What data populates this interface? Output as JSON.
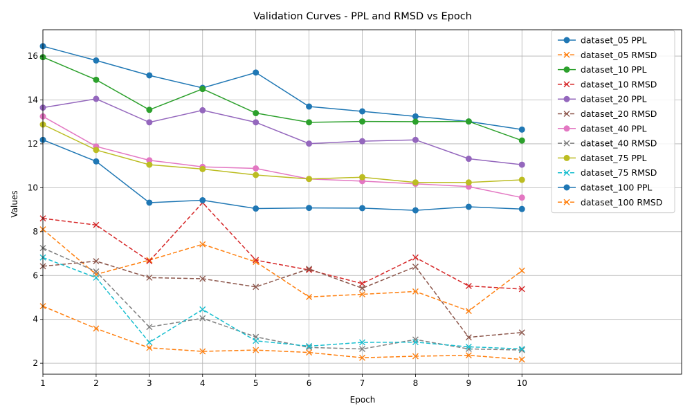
{
  "chart_data": {
    "type": "line",
    "title": "Validation Curves - PPL and RMSD vs Epoch",
    "xlabel": "Epoch",
    "ylabel": "Values",
    "xlim": [
      1,
      13
    ],
    "ylim": [
      1.5,
      17.2
    ],
    "x": [
      1,
      2,
      3,
      4,
      5,
      6,
      7,
      8,
      9,
      10
    ],
    "xticks": [
      "1",
      "2",
      "3",
      "4",
      "5",
      "6",
      "7",
      "8",
      "9",
      "10"
    ],
    "yticks": [
      "2",
      "4",
      "6",
      "8",
      "10",
      "12",
      "14",
      "16"
    ],
    "grid": true,
    "legend_position": "top-right",
    "series": [
      {
        "name": "dataset_05 PPL",
        "color": "#1f77b4",
        "style": "solid",
        "marker": "circle",
        "values": [
          16.45,
          15.8,
          15.12,
          14.55,
          15.25,
          13.7,
          13.48,
          13.25,
          13.02,
          12.65
        ]
      },
      {
        "name": "dataset_05 RMSD",
        "color": "#ff7f0e",
        "style": "dashed",
        "marker": "x",
        "values": [
          8.1,
          6.05,
          6.7,
          7.42,
          6.62,
          5.02,
          5.14,
          5.27,
          4.38,
          6.22
        ]
      },
      {
        "name": "dataset_10 PPL",
        "color": "#2ca02c",
        "style": "solid",
        "marker": "circle",
        "values": [
          15.95,
          14.92,
          13.55,
          14.5,
          13.4,
          12.98,
          13.02,
          13.01,
          13.02,
          12.15
        ]
      },
      {
        "name": "dataset_10 RMSD",
        "color": "#d62728",
        "style": "dashed",
        "marker": "x",
        "values": [
          8.6,
          8.3,
          6.65,
          9.32,
          6.7,
          6.25,
          5.63,
          6.82,
          5.52,
          5.38
        ]
      },
      {
        "name": "dataset_20 PPL",
        "color": "#9467bd",
        "style": "solid",
        "marker": "circle",
        "values": [
          13.65,
          14.05,
          12.98,
          13.53,
          12.98,
          12.01,
          12.12,
          12.18,
          11.32,
          11.05
        ]
      },
      {
        "name": "dataset_20 RMSD",
        "color": "#8c564b",
        "style": "dashed",
        "marker": "x",
        "values": [
          6.42,
          6.65,
          5.9,
          5.85,
          5.48,
          6.3,
          5.42,
          6.4,
          3.18,
          3.4
        ]
      },
      {
        "name": "dataset_40 PPL",
        "color": "#e377c2",
        "style": "solid",
        "marker": "circle",
        "values": [
          13.25,
          11.88,
          11.25,
          10.95,
          10.88,
          10.4,
          10.3,
          10.18,
          10.05,
          9.55
        ]
      },
      {
        "name": "dataset_40 RMSD",
        "color": "#7f7f7f",
        "style": "dashed",
        "marker": "x",
        "values": [
          7.25,
          6.18,
          3.65,
          4.05,
          3.2,
          2.72,
          2.65,
          3.08,
          2.65,
          2.6
        ]
      },
      {
        "name": "dataset_75 PPL",
        "color": "#bcbd22",
        "style": "solid",
        "marker": "circle",
        "values": [
          12.88,
          11.72,
          11.05,
          10.85,
          10.58,
          10.4,
          10.48,
          10.24,
          10.24,
          10.36
        ]
      },
      {
        "name": "dataset_75 RMSD",
        "color": "#17becf",
        "style": "dashed",
        "marker": "x",
        "values": [
          6.82,
          5.9,
          2.95,
          4.45,
          3.02,
          2.78,
          2.95,
          2.96,
          2.75,
          2.65
        ]
      },
      {
        "name": "dataset_100 PPL",
        "color": "#1f77b4",
        "style": "solid",
        "marker": "circle",
        "values": [
          12.18,
          11.2,
          9.32,
          9.43,
          9.05,
          9.08,
          9.07,
          8.97,
          9.13,
          9.03
        ]
      },
      {
        "name": "dataset_100 RMSD",
        "color": "#ff7f0e",
        "style": "dashed",
        "marker": "x",
        "values": [
          4.6,
          3.58,
          2.7,
          2.54,
          2.6,
          2.49,
          2.25,
          2.32,
          2.36,
          2.17
        ]
      }
    ]
  }
}
